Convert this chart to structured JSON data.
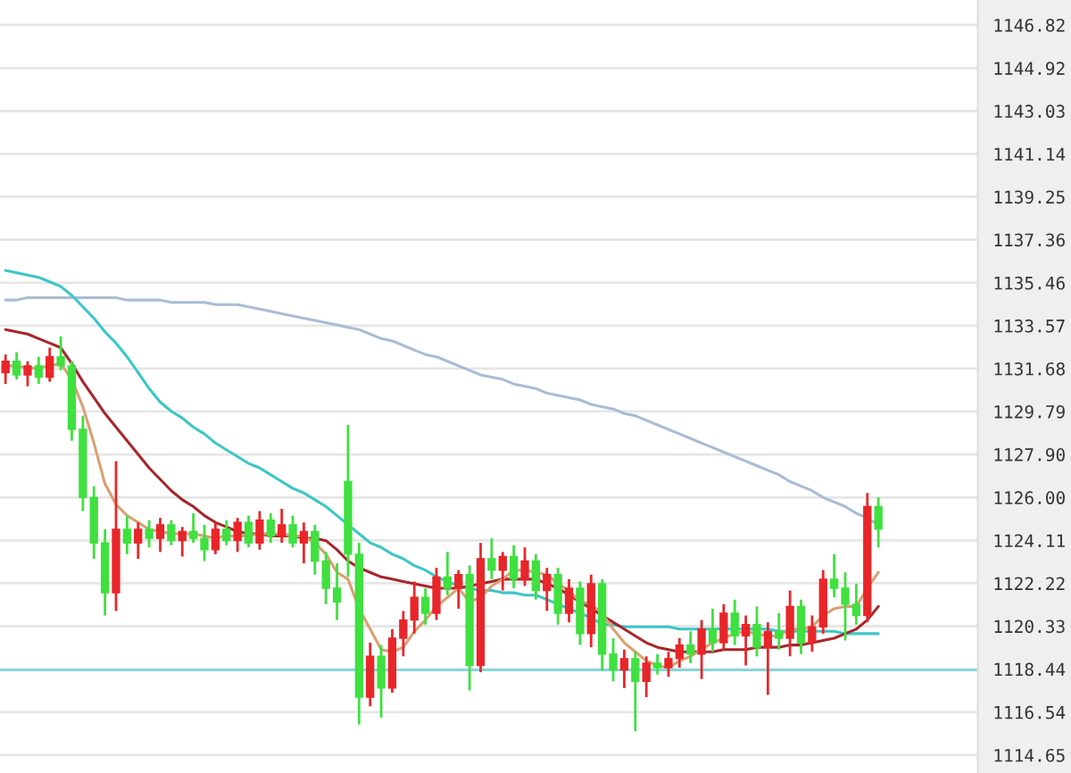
{
  "chart_data": {
    "type": "candlestick",
    "categories": [
      null,
      null,
      null,
      null,
      null,
      null,
      null,
      null,
      null,
      null,
      null,
      null,
      null,
      null,
      null,
      null,
      null,
      null,
      null,
      null,
      null,
      null,
      null,
      null,
      null,
      null,
      null,
      null,
      null,
      null,
      null,
      null,
      null,
      null,
      null,
      null,
      null,
      null,
      null,
      null,
      null,
      null,
      null,
      null,
      null,
      null,
      null,
      null,
      null,
      null,
      null,
      null,
      null,
      null,
      null,
      null,
      null,
      null,
      null,
      null,
      null,
      null,
      null,
      null,
      null,
      null,
      null,
      null,
      null,
      null,
      null,
      null,
      null,
      null,
      null,
      null,
      null,
      null,
      null,
      null
    ],
    "ohlc": [
      [
        1131.5,
        1132.3,
        1131.0,
        1132.0
      ],
      [
        1132.0,
        1132.4,
        1131.2,
        1131.4
      ],
      [
        1131.4,
        1132.0,
        1130.9,
        1131.8
      ],
      [
        1131.8,
        1132.2,
        1131.0,
        1131.3
      ],
      [
        1131.3,
        1132.6,
        1131.1,
        1132.2
      ],
      [
        1132.2,
        1133.1,
        1131.6,
        1131.8
      ],
      [
        1131.8,
        1132.0,
        1128.5,
        1129.0
      ],
      [
        1129.0,
        1129.6,
        1125.4,
        1126.0
      ],
      [
        1126.0,
        1126.5,
        1123.3,
        1124.0
      ],
      [
        1124.0,
        1124.6,
        1120.8,
        1121.8
      ],
      [
        1121.8,
        1127.6,
        1121.0,
        1124.6
      ],
      [
        1124.6,
        1125.2,
        1123.5,
        1124.0
      ],
      [
        1124.0,
        1124.9,
        1123.3,
        1124.6
      ],
      [
        1124.6,
        1125.0,
        1123.8,
        1124.2
      ],
      [
        1124.2,
        1125.1,
        1123.6,
        1124.8
      ],
      [
        1124.8,
        1125.0,
        1123.9,
        1124.1
      ],
      [
        1124.1,
        1124.7,
        1123.4,
        1124.5
      ],
      [
        1124.5,
        1125.3,
        1124.0,
        1124.2
      ],
      [
        1124.2,
        1124.8,
        1123.2,
        1123.7
      ],
      [
        1123.7,
        1124.9,
        1123.5,
        1124.6
      ],
      [
        1124.6,
        1125.0,
        1123.9,
        1124.1
      ],
      [
        1124.1,
        1125.1,
        1123.6,
        1124.9
      ],
      [
        1124.9,
        1125.2,
        1123.8,
        1124.0
      ],
      [
        1124.0,
        1125.4,
        1123.7,
        1125.0
      ],
      [
        1125.0,
        1125.3,
        1124.0,
        1124.3
      ],
      [
        1124.3,
        1125.5,
        1124.0,
        1124.8
      ],
      [
        1124.8,
        1125.2,
        1123.8,
        1124.0
      ],
      [
        1124.0,
        1124.9,
        1123.1,
        1124.5
      ],
      [
        1124.5,
        1124.8,
        1122.6,
        1123.2
      ],
      [
        1123.2,
        1123.6,
        1121.3,
        1122.0
      ],
      [
        1122.0,
        1123.1,
        1120.6,
        1121.4
      ],
      [
        1126.7,
        1129.2,
        1122.5,
        1123.5
      ],
      [
        1123.5,
        1124.0,
        1116.0,
        1117.2
      ],
      [
        1117.2,
        1119.6,
        1116.8,
        1119.0
      ],
      [
        1119.0,
        1119.5,
        1116.3,
        1117.6
      ],
      [
        1117.6,
        1120.2,
        1117.4,
        1119.8
      ],
      [
        1119.8,
        1121.0,
        1119.0,
        1120.6
      ],
      [
        1120.6,
        1122.3,
        1120.0,
        1121.6
      ],
      [
        1121.6,
        1122.0,
        1120.4,
        1120.9
      ],
      [
        1120.9,
        1122.9,
        1120.6,
        1122.5
      ],
      [
        1122.5,
        1123.6,
        1121.7,
        1122.0
      ],
      [
        1122.0,
        1122.8,
        1121.1,
        1122.6
      ],
      [
        1122.6,
        1123.0,
        1117.5,
        1118.6
      ],
      [
        1118.6,
        1124.0,
        1118.3,
        1123.3
      ],
      [
        1123.3,
        1124.2,
        1122.4,
        1122.8
      ],
      [
        1122.8,
        1123.6,
        1121.9,
        1123.4
      ],
      [
        1123.4,
        1123.9,
        1122.0,
        1122.4
      ],
      [
        1122.4,
        1123.8,
        1122.1,
        1123.2
      ],
      [
        1123.2,
        1123.5,
        1121.5,
        1121.9
      ],
      [
        1121.9,
        1122.9,
        1121.0,
        1122.6
      ],
      [
        1122.6,
        1122.9,
        1120.4,
        1120.9
      ],
      [
        1120.9,
        1122.4,
        1120.5,
        1122.0
      ],
      [
        1122.0,
        1122.3,
        1119.5,
        1120.0
      ],
      [
        1120.0,
        1122.6,
        1119.4,
        1122.2
      ],
      [
        1122.2,
        1122.4,
        1118.4,
        1119.1
      ],
      [
        1119.1,
        1119.8,
        1117.9,
        1118.4
      ],
      [
        1118.4,
        1119.3,
        1117.6,
        1118.9
      ],
      [
        1118.9,
        1119.2,
        1115.7,
        1117.9
      ],
      [
        1117.9,
        1119.0,
        1117.2,
        1118.7
      ],
      [
        1118.7,
        1119.1,
        1118.2,
        1118.5
      ],
      [
        1118.5,
        1119.2,
        1118.1,
        1118.9
      ],
      [
        1118.9,
        1119.8,
        1118.5,
        1119.5
      ],
      [
        1119.5,
        1120.1,
        1118.7,
        1119.1
      ],
      [
        1119.1,
        1120.6,
        1118.0,
        1120.2
      ],
      [
        1120.2,
        1121.1,
        1119.2,
        1119.6
      ],
      [
        1119.6,
        1121.3,
        1119.3,
        1120.9
      ],
      [
        1120.9,
        1121.5,
        1119.5,
        1119.9
      ],
      [
        1119.9,
        1120.8,
        1118.6,
        1120.4
      ],
      [
        1120.4,
        1121.2,
        1119.0,
        1119.4
      ],
      [
        1119.4,
        1120.5,
        1117.3,
        1120.1
      ],
      [
        1120.1,
        1120.9,
        1119.3,
        1119.8
      ],
      [
        1119.8,
        1121.9,
        1119.0,
        1121.2
      ],
      [
        1121.2,
        1121.5,
        1119.1,
        1119.6
      ],
      [
        1119.6,
        1120.8,
        1119.2,
        1120.3
      ],
      [
        1120.3,
        1122.8,
        1120.0,
        1122.4
      ],
      [
        1122.4,
        1123.5,
        1121.6,
        1122.0
      ],
      [
        1122.0,
        1122.7,
        1119.7,
        1121.3
      ],
      [
        1121.3,
        1122.2,
        1120.4,
        1120.8
      ],
      [
        1120.8,
        1126.2,
        1120.5,
        1125.6
      ],
      [
        1125.6,
        1126.0,
        1123.8,
        1124.6
      ]
    ],
    "colors": [
      "#e8262a",
      "#3fe03f",
      "#e8262a",
      "#3fe03f",
      "#e8262a",
      "#3fe03f",
      "#3fe03f",
      "#3fe03f",
      "#3fe03f",
      "#3fe03f",
      "#e8262a",
      "#3fe03f",
      "#e8262a",
      "#3fe03f",
      "#e8262a",
      "#3fe03f",
      "#e8262a",
      "#3fe03f",
      "#3fe03f",
      "#e8262a",
      "#3fe03f",
      "#e8262a",
      "#3fe03f",
      "#e8262a",
      "#3fe03f",
      "#e8262a",
      "#3fe03f",
      "#e8262a",
      "#3fe03f",
      "#3fe03f",
      "#3fe03f",
      "#3fe03f",
      "#3fe03f",
      "#e8262a",
      "#3fe03f",
      "#e8262a",
      "#e8262a",
      "#e8262a",
      "#3fe03f",
      "#e8262a",
      "#3fe03f",
      "#e8262a",
      "#3fe03f",
      "#e8262a",
      "#3fe03f",
      "#e8262a",
      "#3fe03f",
      "#e8262a",
      "#3fe03f",
      "#e8262a",
      "#3fe03f",
      "#e8262a",
      "#3fe03f",
      "#e8262a",
      "#3fe03f",
      "#3fe03f",
      "#e8262a",
      "#3fe03f",
      "#e8262a",
      "#3fe03f",
      "#e8262a",
      "#e8262a",
      "#3fe03f",
      "#e8262a",
      "#3fe03f",
      "#e8262a",
      "#3fe03f",
      "#e8262a",
      "#3fe03f",
      "#e8262a",
      "#3fe03f",
      "#e8262a",
      "#3fe03f",
      "#e8262a",
      "#e8262a",
      "#3fe03f",
      "#3fe03f",
      "#3fe03f",
      "#e8262a",
      "#3fe03f"
    ],
    "series": [
      {
        "type": "line",
        "color": "#a9bcd4",
        "values": [
          1134.7,
          1134.7,
          1134.8,
          1134.8,
          1134.8,
          1134.8,
          1134.8,
          1134.8,
          1134.8,
          1134.8,
          1134.8,
          1134.7,
          1134.7,
          1134.7,
          1134.7,
          1134.6,
          1134.6,
          1134.6,
          1134.6,
          1134.5,
          1134.5,
          1134.5,
          1134.4,
          1134.3,
          1134.2,
          1134.1,
          1134.0,
          1133.9,
          1133.8,
          1133.7,
          1133.6,
          1133.5,
          1133.4,
          1133.2,
          1133.0,
          1132.9,
          1132.7,
          1132.5,
          1132.3,
          1132.2,
          1132.0,
          1131.8,
          1131.6,
          1131.4,
          1131.3,
          1131.2,
          1131.0,
          1130.9,
          1130.8,
          1130.6,
          1130.5,
          1130.4,
          1130.3,
          1130.1,
          1130.0,
          1129.9,
          1129.7,
          1129.6,
          1129.4,
          1129.2,
          1129.0,
          1128.8,
          1128.6,
          1128.4,
          1128.2,
          1128.0,
          1127.8,
          1127.6,
          1127.4,
          1127.2,
          1127.0,
          1126.7,
          1126.5,
          1126.3,
          1126.0,
          1125.8,
          1125.6,
          1125.3,
          1125.1,
          1124.8
        ]
      },
      {
        "type": "line",
        "color": "#3cc6c6",
        "values": [
          1136.0,
          1135.9,
          1135.8,
          1135.7,
          1135.5,
          1135.3,
          1134.9,
          1134.4,
          1133.9,
          1133.3,
          1132.8,
          1132.2,
          1131.5,
          1130.8,
          1130.2,
          1129.8,
          1129.5,
          1129.1,
          1128.8,
          1128.4,
          1128.1,
          1127.8,
          1127.5,
          1127.3,
          1127.0,
          1126.7,
          1126.4,
          1126.2,
          1125.9,
          1125.6,
          1125.2,
          1124.8,
          1124.4,
          1124.0,
          1123.8,
          1123.5,
          1123.3,
          1123.0,
          1122.8,
          1122.5,
          1122.3,
          1122.1,
          1122.0,
          1121.9,
          1121.9,
          1121.8,
          1121.8,
          1121.7,
          1121.7,
          1121.5,
          1121.3,
          1121.1,
          1120.9,
          1120.7,
          1120.4,
          1120.4,
          1120.3,
          1120.3,
          1120.3,
          1120.3,
          1120.3,
          1120.2,
          1120.2,
          1120.2,
          1120.2,
          1120.2,
          1120.2,
          1120.2,
          1120.2,
          1120.2,
          1120.1,
          1120.1,
          1120.1,
          1120.1,
          1120.1,
          1120.1,
          1120.0,
          1120.0,
          1120.0,
          1120.0
        ]
      },
      {
        "type": "line",
        "color": "#a8262a",
        "values": [
          1133.4,
          1133.3,
          1133.2,
          1133.0,
          1132.8,
          1132.6,
          1131.9,
          1131.1,
          1130.4,
          1129.7,
          1129.1,
          1128.5,
          1127.9,
          1127.3,
          1126.8,
          1126.3,
          1125.9,
          1125.6,
          1125.2,
          1124.9,
          1124.7,
          1124.5,
          1124.4,
          1124.4,
          1124.3,
          1124.3,
          1124.3,
          1124.2,
          1124.2,
          1124.1,
          1123.7,
          1123.2,
          1122.9,
          1122.7,
          1122.5,
          1122.4,
          1122.3,
          1122.2,
          1122.1,
          1122.0,
          1122.0,
          1122.0,
          1122.1,
          1122.2,
          1122.3,
          1122.4,
          1122.4,
          1122.4,
          1122.4,
          1122.2,
          1122.0,
          1121.7,
          1121.4,
          1121.1,
          1120.8,
          1120.5,
          1120.2,
          1119.9,
          1119.6,
          1119.4,
          1119.3,
          1119.2,
          1119.2,
          1119.2,
          1119.2,
          1119.3,
          1119.3,
          1119.3,
          1119.4,
          1119.4,
          1119.4,
          1119.5,
          1119.5,
          1119.6,
          1119.7,
          1119.8,
          1120.0,
          1120.2,
          1120.6,
          1121.2
        ]
      },
      {
        "type": "line",
        "color": "#d9a070",
        "values": [
          1131.8,
          1131.8,
          1131.7,
          1131.7,
          1131.8,
          1131.9,
          1131.2,
          1130.0,
          1128.4,
          1126.6,
          1125.7,
          1125.2,
          1124.9,
          1124.6,
          1124.5,
          1124.4,
          1124.4,
          1124.4,
          1124.3,
          1124.2,
          1124.3,
          1124.3,
          1124.3,
          1124.4,
          1124.4,
          1124.4,
          1124.3,
          1124.3,
          1124.0,
          1123.5,
          1122.7,
          1122.4,
          1121.1,
          1120.2,
          1119.3,
          1119.2,
          1119.4,
          1120.1,
          1120.6,
          1121.2,
          1121.6,
          1122.0,
          1121.4,
          1121.6,
          1122.1,
          1122.4,
          1122.8,
          1122.8,
          1122.7,
          1122.6,
          1122.2,
          1121.9,
          1121.4,
          1121.3,
          1120.9,
          1120.2,
          1119.6,
          1119.2,
          1118.8,
          1118.6,
          1118.5,
          1118.8,
          1119.0,
          1119.3,
          1119.6,
          1119.8,
          1120.0,
          1120.1,
          1120.0,
          1119.9,
          1119.9,
          1120.2,
          1120.2,
          1120.3,
          1120.8,
          1121.1,
          1121.2,
          1121.2,
          1122.0,
          1122.7
        ]
      }
    ],
    "ylim": [
      1113.86,
      1147.92
    ],
    "yticks": [
      1146.82,
      1144.92,
      1143.03,
      1141.14,
      1139.25,
      1137.36,
      1135.46,
      1133.57,
      1131.68,
      1129.79,
      {
        "value": 1127.9,
        "label": "1127.90"
      },
      {
        "value": 1126.0,
        "label": "1126.00"
      },
      1124.11,
      1122.22,
      1120.33,
      1118.44,
      1116.54,
      1114.65
    ],
    "ref_lines": [
      {
        "axis": "y",
        "value": 1118.4,
        "color": "#7fd6d6"
      }
    ],
    "grid": "y",
    "tick_labels": "y",
    "legend": false
  }
}
